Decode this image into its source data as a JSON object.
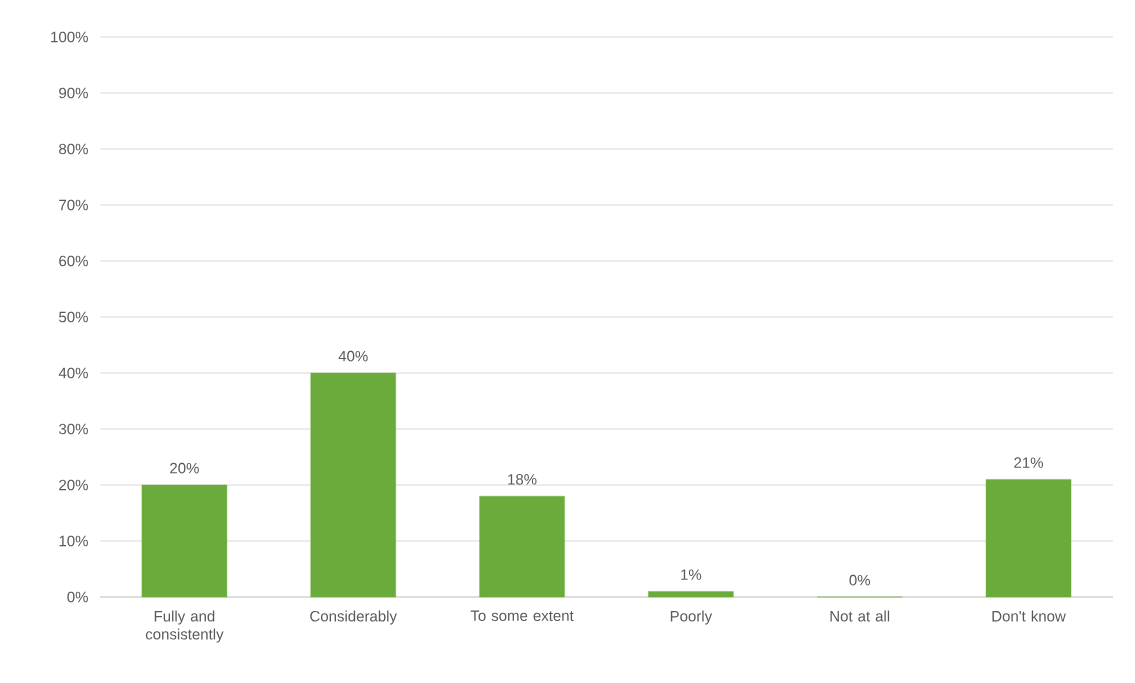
{
  "chart_data": {
    "type": "bar",
    "categories": [
      "Fully and consistently",
      "Considerably",
      "To some extent",
      "Poorly",
      "Not at all",
      "Don't know"
    ],
    "values": [
      20,
      40,
      18,
      1,
      0,
      21
    ],
    "value_labels": [
      "20%",
      "40%",
      "18%",
      "1%",
      "0%",
      "21%"
    ],
    "color": "#6aab3c",
    "ylim": [
      0,
      100
    ],
    "yticks": [
      {
        "value": 0,
        "label": "0%"
      },
      {
        "value": 10,
        "label": "10%"
      },
      {
        "value": 20,
        "label": "20%"
      },
      {
        "value": 30,
        "label": "30%"
      },
      {
        "value": 40,
        "label": "40%"
      },
      {
        "value": 50,
        "label": "50%"
      },
      {
        "value": 60,
        "label": "60%"
      },
      {
        "value": 70,
        "label": "70%"
      },
      {
        "value": 80,
        "label": "80%"
      },
      {
        "value": 90,
        "label": "90%"
      },
      {
        "value": 100,
        "label": "100%"
      }
    ],
    "grid": "y"
  }
}
